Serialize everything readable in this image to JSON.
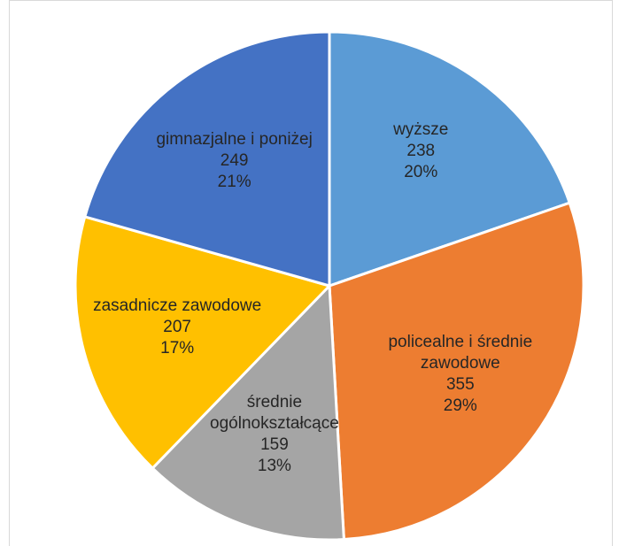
{
  "chart_data": {
    "type": "pie",
    "title": "",
    "slices": [
      {
        "label": [
          "wyższe"
        ],
        "value": 238,
        "percent": "20%",
        "color": "#5B9BD5"
      },
      {
        "label": [
          "policealne i średnie",
          "zawodowe"
        ],
        "value": 355,
        "percent": "29%",
        "color": "#ED7D31"
      },
      {
        "label": [
          "średnie",
          "ogólnokształcące"
        ],
        "value": 159,
        "percent": "13%",
        "color": "#A5A5A5"
      },
      {
        "label": [
          "zasadnicze zawodowe"
        ],
        "value": 207,
        "percent": "17%",
        "color": "#FFC000"
      },
      {
        "label": [
          "gimnazjalne i poniżej"
        ],
        "value": 249,
        "percent": "21%",
        "color": "#4472C4"
      }
    ],
    "start_angle_deg": 0,
    "direction": "clockwise",
    "slice_border_color": "#ffffff"
  }
}
